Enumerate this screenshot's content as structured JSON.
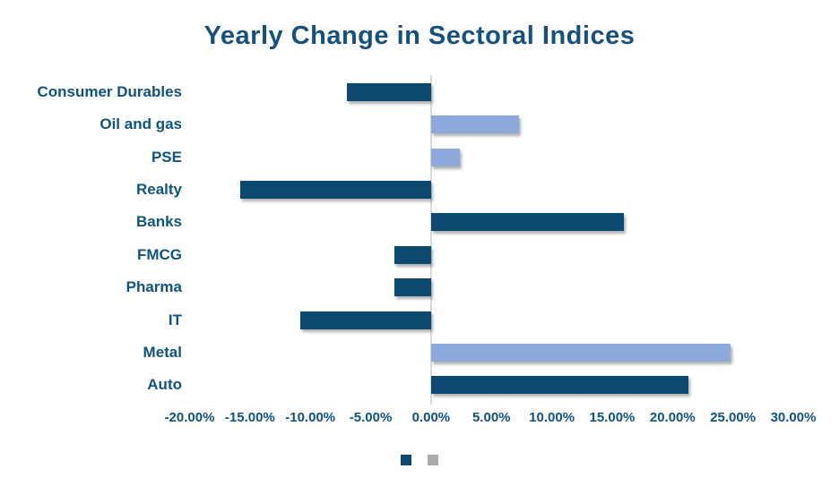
{
  "chart_data": {
    "type": "bar",
    "orientation": "horizontal",
    "title": "Yearly Change in Sectoral Indices",
    "categories": [
      "Consumer Durables",
      "Oil and gas",
      "PSE",
      "Realty",
      "Banks",
      "FMCG",
      "Pharma",
      "IT",
      "Metal",
      "Auto"
    ],
    "series": [
      {
        "name": "series-1-dark",
        "color": "#0C4970",
        "values": [
          -7.0,
          null,
          null,
          -15.8,
          16.0,
          -3.0,
          -3.0,
          -10.8,
          null,
          21.3
        ]
      },
      {
        "name": "series-2-light",
        "color": "#8EA9DB",
        "values": [
          null,
          7.3,
          2.4,
          null,
          null,
          null,
          null,
          null,
          24.8,
          null
        ]
      }
    ],
    "xlabel": "",
    "ylabel": "",
    "xlim": [
      -20,
      30
    ],
    "x_tick_values": [
      -20,
      -15,
      -10,
      -5,
      0,
      5,
      10,
      15,
      20,
      25,
      30
    ],
    "x_tick_labels": [
      "-20.00%",
      "-15.00%",
      "-10.00%",
      "-5.00%",
      "0.00%",
      "5.00%",
      "10.00%",
      "15.00%",
      "20.00%",
      "25.00%",
      "30.00%"
    ],
    "grid": "zero-line-only",
    "legend": {
      "position": "bottom-center",
      "entries": [
        {
          "label": "",
          "color": "#0C4970"
        },
        {
          "label": "",
          "color": "#ABABAB"
        }
      ]
    },
    "value_unit": "percent"
  }
}
